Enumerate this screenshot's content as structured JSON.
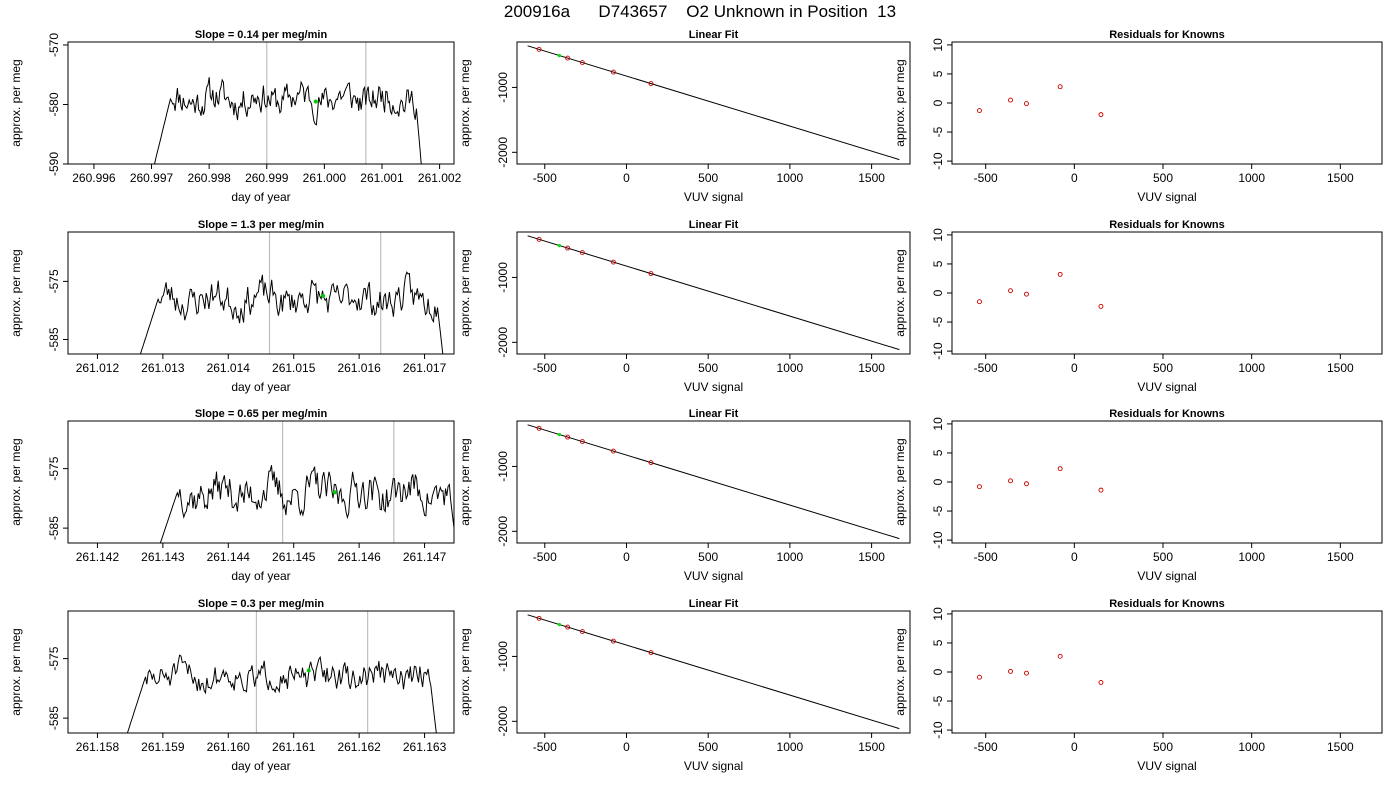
{
  "page": {
    "title": "200916a      D743657    O2 Unknown in Position  13"
  },
  "colors": {
    "line": "#000000",
    "frame": "#000000",
    "marker_vertical": "#bebebe",
    "current_point": "#00cc00",
    "known_points": "#cc0000",
    "known_points_green": "#00dd00"
  },
  "chart_data": [
    {
      "type": "line",
      "row": 0,
      "panel": "timeseries",
      "title": "Slope =  0.14  per meg/min",
      "xlabel": "day of year",
      "ylabel": "approx. per meg",
      "xlim": [
        260.99555,
        261.00225
      ],
      "ylim": [
        -590,
        -569.5
      ],
      "xticks": [
        "260.996",
        "260.997",
        "260.998",
        "260.999",
        "261.000",
        "261.001",
        "261.002"
      ],
      "xtick_values": [
        260.996,
        260.997,
        260.998,
        260.999,
        261.0,
        261.001,
        261.002
      ],
      "yticks": [
        "-570",
        "-580",
        "-590"
      ],
      "ytick_values": [
        -570,
        -580,
        -590
      ],
      "vlines": [
        260.999,
        261.00072
      ],
      "x_start": 260.997,
      "x_end": 261.0017,
      "series_base": -579,
      "series_amp": 2.0,
      "seed": 11,
      "current_point": [
        260.99985,
        -579.5
      ]
    },
    {
      "type": "line",
      "row": 0,
      "panel": "fit",
      "title": "Linear Fit",
      "xlabel": "VUV signal",
      "ylabel": "approx. per meg",
      "xlim": [
        -670,
        1735
      ],
      "ylim": [
        -2180,
        -300
      ],
      "xticks": [
        "-500",
        "0",
        "500",
        "1000",
        "1500"
      ],
      "xtick_values": [
        -500,
        0,
        500,
        1000,
        1500
      ],
      "yticks": [
        "-1000",
        "-2000"
      ],
      "ytick_values": [
        -1000,
        -2000
      ],
      "line": [
        [
          -605,
          -359
        ],
        [
          1670,
          -2112
        ]
      ],
      "points": [
        [
          -535,
          -413
        ],
        [
          -360,
          -548
        ],
        [
          -270,
          -617
        ],
        [
          -80,
          -764
        ],
        [
          150,
          -941
        ]
      ],
      "green_points": [
        [
          -410,
          -510
        ]
      ]
    },
    {
      "type": "scatter",
      "row": 0,
      "panel": "residuals",
      "title": "Residuals for Knowns",
      "xlabel": "VUV signal",
      "ylabel": "approx. per meg",
      "xlim": [
        -690,
        1735
      ],
      "ylim": [
        -10.5,
        10.5
      ],
      "xticks": [
        "-500",
        "0",
        "500",
        "1000",
        "1500"
      ],
      "xtick_values": [
        -500,
        0,
        500,
        1000,
        1500
      ],
      "yticks": [
        "10",
        "5",
        "0",
        "-5",
        "-10"
      ],
      "ytick_values": [
        10,
        5,
        0,
        -5,
        -10
      ],
      "points": [
        [
          -535,
          -1.3
        ],
        [
          -360,
          0.5
        ],
        [
          -270,
          -0.1
        ],
        [
          -80,
          2.8
        ],
        [
          150,
          -2.0
        ]
      ]
    },
    {
      "type": "line",
      "row": 1,
      "panel": "timeseries",
      "title": "Slope =  1.3  per meg/min",
      "xlabel": "day of year",
      "ylabel": "approx. per meg",
      "xlim": [
        261.01155,
        261.01745
      ],
      "ylim": [
        -587.5,
        -566.5
      ],
      "xticks": [
        "261.012",
        "261.013",
        "261.014",
        "261.015",
        "261.016",
        "261.017"
      ],
      "xtick_values": [
        261.012,
        261.013,
        261.014,
        261.015,
        261.016,
        261.017
      ],
      "yticks": [
        "-575",
        "-585"
      ],
      "ytick_values": [
        -575,
        -585
      ],
      "vlines": [
        261.01463,
        261.01633
      ],
      "x_start": 261.0126,
      "x_end": 261.0173,
      "series_base": -578,
      "series_amp": 2.2,
      "seed": 23,
      "current_point": [
        261.01545,
        -577.5
      ]
    },
    {
      "type": "line",
      "row": 1,
      "panel": "fit",
      "title": "Linear Fit",
      "xlabel": "VUV signal",
      "ylabel": "approx. per meg",
      "xlim": [
        -670,
        1735
      ],
      "ylim": [
        -2180,
        -300
      ],
      "xticks": [
        "-500",
        "0",
        "500",
        "1000",
        "1500"
      ],
      "xtick_values": [
        -500,
        0,
        500,
        1000,
        1500
      ],
      "yticks": [
        "-1000",
        "-2000"
      ],
      "ytick_values": [
        -1000,
        -2000
      ],
      "line": [
        [
          -605,
          -359
        ],
        [
          1670,
          -2112
        ]
      ],
      "points": [
        [
          -535,
          -413
        ],
        [
          -360,
          -548
        ],
        [
          -270,
          -617
        ],
        [
          -80,
          -764
        ],
        [
          150,
          -941
        ]
      ],
      "green_points": [
        [
          -410,
          -510
        ]
      ]
    },
    {
      "type": "scatter",
      "row": 1,
      "panel": "residuals",
      "title": "Residuals for Knowns",
      "xlabel": "VUV signal",
      "ylabel": "approx. per meg",
      "xlim": [
        -690,
        1735
      ],
      "ylim": [
        -10.5,
        10.5
      ],
      "xticks": [
        "-500",
        "0",
        "500",
        "1000",
        "1500"
      ],
      "xtick_values": [
        -500,
        0,
        500,
        1000,
        1500
      ],
      "yticks": [
        "10",
        "5",
        "0",
        "-5",
        "-10"
      ],
      "ytick_values": [
        10,
        5,
        0,
        -5,
        -10
      ],
      "points": [
        [
          -535,
          -1.5
        ],
        [
          -360,
          0.4
        ],
        [
          -270,
          -0.2
        ],
        [
          -80,
          3.2
        ],
        [
          150,
          -2.3
        ]
      ]
    },
    {
      "type": "line",
      "row": 2,
      "panel": "timeseries",
      "title": "Slope =  0.65  per meg/min",
      "xlabel": "day of year",
      "ylabel": "approx. per meg",
      "xlim": [
        261.14155,
        261.14745
      ],
      "ylim": [
        -587.5,
        -567
      ],
      "xticks": [
        "261.142",
        "261.143",
        "261.144",
        "261.145",
        "261.146",
        "261.147"
      ],
      "xtick_values": [
        261.142,
        261.143,
        261.144,
        261.145,
        261.146,
        261.147
      ],
      "yticks": [
        "-575",
        "-585"
      ],
      "ytick_values": [
        -575,
        -585
      ],
      "vlines": [
        261.14483,
        261.14653
      ],
      "x_start": 261.1429,
      "x_end": 261.1475,
      "series_base": -579,
      "series_amp": 2.4,
      "seed": 37,
      "current_point": [
        261.14563,
        -579.0
      ]
    },
    {
      "type": "line",
      "row": 2,
      "panel": "fit",
      "title": "Linear Fit",
      "xlabel": "VUV signal",
      "ylabel": "approx. per meg",
      "xlim": [
        -670,
        1735
      ],
      "ylim": [
        -2180,
        -300
      ],
      "xticks": [
        "-500",
        "0",
        "500",
        "1000",
        "1500"
      ],
      "xtick_values": [
        -500,
        0,
        500,
        1000,
        1500
      ],
      "yticks": [
        "-1000",
        "-2000"
      ],
      "ytick_values": [
        -1000,
        -2000
      ],
      "line": [
        [
          -605,
          -359
        ],
        [
          1670,
          -2112
        ]
      ],
      "points": [
        [
          -535,
          -413
        ],
        [
          -360,
          -548
        ],
        [
          -270,
          -617
        ],
        [
          -80,
          -764
        ],
        [
          150,
          -941
        ]
      ],
      "green_points": [
        [
          -410,
          -510
        ]
      ]
    },
    {
      "type": "scatter",
      "row": 2,
      "panel": "residuals",
      "title": "Residuals for Knowns",
      "xlabel": "VUV signal",
      "ylabel": "approx. per meg",
      "xlim": [
        -690,
        1735
      ],
      "ylim": [
        -10.5,
        10.5
      ],
      "xticks": [
        "-500",
        "0",
        "500",
        "1000",
        "1500"
      ],
      "xtick_values": [
        -500,
        0,
        500,
        1000,
        1500
      ],
      "yticks": [
        "10",
        "5",
        "0",
        "-5",
        "-10"
      ],
      "ytick_values": [
        10,
        5,
        0,
        -5,
        -10
      ],
      "points": [
        [
          -535,
          -0.8
        ],
        [
          -360,
          0.2
        ],
        [
          -270,
          -0.3
        ],
        [
          -80,
          2.3
        ],
        [
          150,
          -1.4
        ]
      ]
    },
    {
      "type": "line",
      "row": 3,
      "panel": "timeseries",
      "title": "Slope =  0.3  per meg/min",
      "xlabel": "day of year",
      "ylabel": "approx. per meg",
      "xlim": [
        261.15755,
        261.16345
      ],
      "ylim": [
        -587.5,
        -567
      ],
      "xticks": [
        "261.158",
        "261.159",
        "261.160",
        "261.161",
        "261.162",
        "261.163"
      ],
      "xtick_values": [
        261.158,
        261.159,
        261.16,
        261.161,
        261.162,
        261.163
      ],
      "yticks": [
        "-575",
        "-585"
      ],
      "ytick_values": [
        -575,
        -585
      ],
      "vlines": [
        261.16043,
        261.16213
      ],
      "x_start": 261.1584,
      "x_end": 261.1632,
      "series_base": -578,
      "series_amp": 1.8,
      "seed": 51,
      "current_point": [
        261.16123,
        -577.0
      ]
    },
    {
      "type": "line",
      "row": 3,
      "panel": "fit",
      "title": "Linear Fit",
      "xlabel": "VUV signal",
      "ylabel": "approx. per meg",
      "xlim": [
        -670,
        1735
      ],
      "ylim": [
        -2180,
        -300
      ],
      "xticks": [
        "-500",
        "0",
        "500",
        "1000",
        "1500"
      ],
      "xtick_values": [
        -500,
        0,
        500,
        1000,
        1500
      ],
      "yticks": [
        "-1000",
        "-2000"
      ],
      "ytick_values": [
        -1000,
        -2000
      ],
      "line": [
        [
          -605,
          -359
        ],
        [
          1670,
          -2112
        ]
      ],
      "points": [
        [
          -535,
          -413
        ],
        [
          -360,
          -548
        ],
        [
          -270,
          -617
        ],
        [
          -80,
          -764
        ],
        [
          150,
          -941
        ]
      ],
      "green_points": [
        [
          -410,
          -510
        ]
      ]
    },
    {
      "type": "scatter",
      "row": 3,
      "panel": "residuals",
      "title": "Residuals for Knowns",
      "xlabel": "VUV signal",
      "ylabel": "approx. per meg",
      "xlim": [
        -690,
        1735
      ],
      "ylim": [
        -10.5,
        10.5
      ],
      "xticks": [
        "-500",
        "0",
        "500",
        "1000",
        "1500"
      ],
      "xtick_values": [
        -500,
        0,
        500,
        1000,
        1500
      ],
      "yticks": [
        "10",
        "5",
        "0",
        "-5",
        "-10"
      ],
      "ytick_values": [
        10,
        5,
        0,
        -5,
        -10
      ],
      "points": [
        [
          -535,
          -0.9
        ],
        [
          -360,
          0.1
        ],
        [
          -270,
          -0.2
        ],
        [
          -80,
          2.7
        ],
        [
          150,
          -1.8
        ]
      ]
    }
  ]
}
